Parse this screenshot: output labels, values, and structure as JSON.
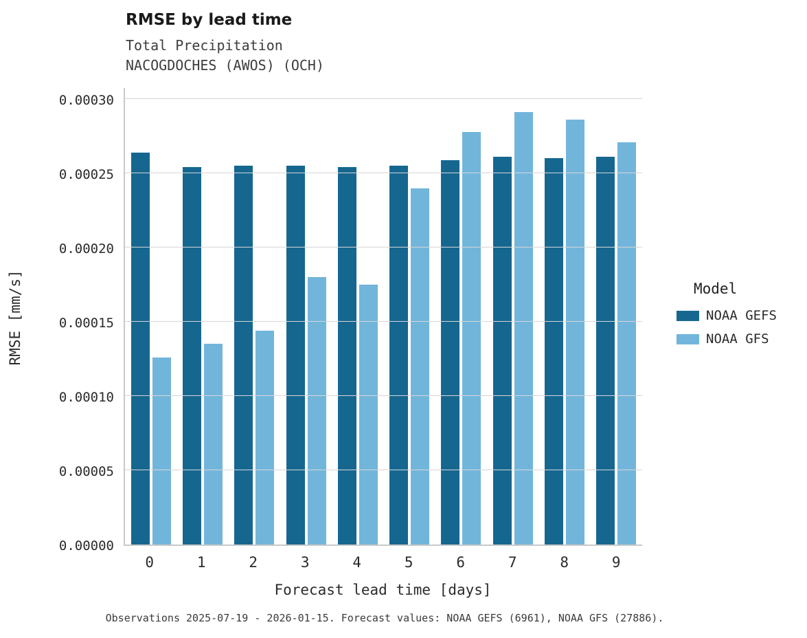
{
  "caption": "Observations 2025-07-19 - 2026-01-15. Forecast values: NOAA GEFS (6961), NOAA GFS (27886).",
  "chart_data": {
    "type": "bar",
    "title": "RMSE by lead time",
    "subtitle1": "Total Precipitation",
    "subtitle2": "NACOGDOCHES (AWOS) (OCH)",
    "xlabel": "Forecast lead time [days]",
    "ylabel": "RMSE [mm/s]",
    "legend_title": "Model",
    "legend_position": "right",
    "grid": true,
    "categories": [
      "0",
      "1",
      "2",
      "3",
      "4",
      "5",
      "6",
      "7",
      "8",
      "9"
    ],
    "series": [
      {
        "name": "NOAA GEFS",
        "color": "#16678f",
        "values": [
          0.000264,
          0.000254,
          0.000255,
          0.000255,
          0.000254,
          0.000255,
          0.000259,
          0.000261,
          0.00026,
          0.000261
        ]
      },
      {
        "name": "NOAA GFS",
        "color": "#72b5db",
        "values": [
          0.000126,
          0.000135,
          0.000144,
          0.00018,
          0.000175,
          0.00024,
          0.000278,
          0.000291,
          0.000286,
          0.000271
        ]
      }
    ],
    "ylim": [
      0,
      0.0003
    ],
    "ytick_step": 5e-05,
    "ytick_decimals": 5
  }
}
